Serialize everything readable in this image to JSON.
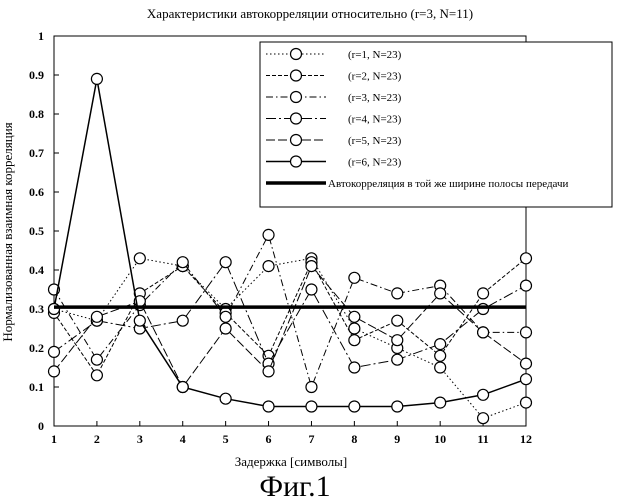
{
  "chart_data": {
    "type": "line",
    "title": "Характеристики автокорреляции относительно (r=3, N=11)",
    "xlabel": "Задержка [символы]",
    "ylabel": "Нормализованная взаимная корреляция",
    "x": [
      1,
      2,
      3,
      4,
      5,
      6,
      7,
      8,
      9,
      10,
      11,
      12
    ],
    "xlim": [
      1,
      12
    ],
    "ylim": [
      0,
      1
    ],
    "y_ticks": [
      "0",
      "0.1",
      "0.2",
      "0.3",
      "0.4",
      "0.5",
      "0.6",
      "0.7",
      "0.8",
      "0.9",
      "1"
    ],
    "grid": false,
    "legend_position": "top-right",
    "series": [
      {
        "name": "(r=1, N=23)",
        "style": "dotted",
        "marker": "circle",
        "values": [
          0.3,
          0.27,
          0.43,
          0.41,
          0.3,
          0.41,
          0.43,
          0.25,
          0.2,
          0.15,
          0.02,
          0.06
        ]
      },
      {
        "name": "(r=2, N=23)",
        "style": "dashed",
        "marker": "circle",
        "values": [
          0.29,
          0.13,
          0.34,
          0.41,
          0.29,
          0.18,
          0.42,
          0.22,
          0.27,
          0.18,
          0.34,
          0.43
        ]
      },
      {
        "name": "(r=3, N=23)",
        "style": "dashdot",
        "marker": "circle",
        "values": [
          0.35,
          0.17,
          0.31,
          0.42,
          0.28,
          0.49,
          0.1,
          0.38,
          0.34,
          0.36,
          0.24,
          0.24
        ]
      },
      {
        "name": "(r=4, N=23)",
        "style": "longdashdot",
        "marker": "circle",
        "values": [
          0.19,
          0.27,
          0.25,
          0.27,
          0.42,
          0.16,
          0.35,
          0.15,
          0.17,
          0.21,
          0.3,
          0.36
        ]
      },
      {
        "name": "(r=5, N=23)",
        "style": "longdash",
        "marker": "circle",
        "values": [
          0.14,
          0.28,
          0.32,
          0.1,
          0.25,
          0.14,
          0.41,
          0.28,
          0.22,
          0.34,
          0.24,
          0.16
        ]
      },
      {
        "name": "(r=6, N=23)",
        "style": "solid",
        "marker": "circle",
        "values": [
          0.3,
          0.89,
          0.27,
          0.1,
          0.07,
          0.05,
          0.05,
          0.05,
          0.05,
          0.06,
          0.08,
          0.12
        ]
      },
      {
        "name": "Автокорреляция в той же ширине полосы передачи",
        "style": "thick",
        "marker": "none",
        "values": [
          0.305,
          0.305,
          0.305,
          0.305,
          0.305,
          0.305,
          0.305,
          0.305,
          0.305,
          0.305,
          0.305,
          0.305
        ]
      }
    ]
  },
  "caption": "Фиг.1",
  "colors": {
    "ink": "#000000",
    "background": "#ffffff"
  }
}
